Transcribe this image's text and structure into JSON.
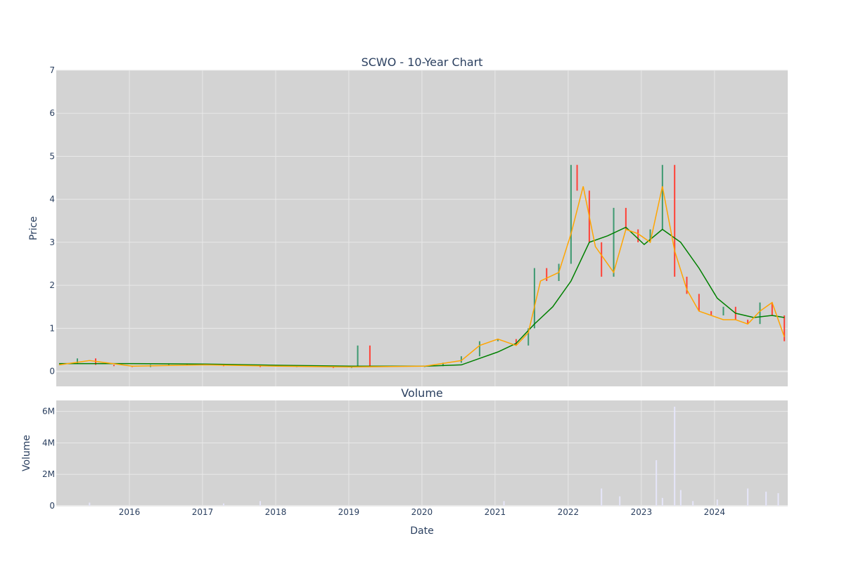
{
  "chart_data": [
    {
      "type": "candlestick",
      "title": "SCWO - 10-Year Chart",
      "ylabel": "Price",
      "xlabel": "",
      "ylim": [
        -0.35,
        7
      ],
      "yticks": [
        0,
        1,
        2,
        3,
        4,
        5,
        6,
        7
      ],
      "xlim": [
        "2015-01-01",
        "2024-12-31"
      ],
      "xticks": [
        "2016",
        "2017",
        "2018",
        "2019",
        "2020",
        "2021",
        "2022",
        "2023",
        "2024"
      ],
      "grid": true,
      "colors": {
        "up": "#3d9970",
        "down": "#ff4136",
        "ma_short": "#ffa500",
        "ma_long": "#008000",
        "plot_bg": "#d3d3d3",
        "grid": "#e8e8e8"
      },
      "series": [
        {
          "name": "",
          "kind": "ohlc-close",
          "x": [
            "2015-01",
            "2015-04",
            "2015-07",
            "2015-10",
            "2016-01",
            "2016-04",
            "2016-07",
            "2016-10",
            "2017-01",
            "2017-04",
            "2017-07",
            "2017-10",
            "2018-01",
            "2018-04",
            "2018-07",
            "2018-10",
            "2019-01",
            "2019-02",
            "2019-04",
            "2019-07",
            "2019-10",
            "2020-01",
            "2020-04",
            "2020-07",
            "2020-10",
            "2021-01",
            "2021-04",
            "2021-06",
            "2021-07",
            "2021-09",
            "2021-11",
            "2022-01",
            "2022-02",
            "2022-04",
            "2022-06",
            "2022-08",
            "2022-10",
            "2022-12",
            "2023-02",
            "2023-04",
            "2023-06",
            "2023-08",
            "2023-10",
            "2023-12",
            "2024-02",
            "2024-04",
            "2024-06",
            "2024-08",
            "2024-10",
            "2024-12"
          ],
          "values": [
            0.18,
            0.3,
            0.15,
            0.12,
            0.1,
            0.15,
            0.18,
            0.14,
            0.15,
            0.12,
            0.12,
            0.1,
            0.1,
            0.12,
            0.1,
            0.08,
            0.1,
            0.6,
            0.1,
            0.1,
            0.1,
            0.12,
            0.2,
            0.35,
            0.7,
            0.75,
            0.6,
            1.0,
            2.4,
            2.1,
            2.5,
            4.8,
            4.2,
            3.0,
            2.2,
            3.8,
            3.3,
            3.0,
            3.3,
            4.8,
            2.2,
            1.8,
            1.4,
            1.3,
            1.5,
            1.2,
            1.1,
            1.6,
            1.3,
            0.7
          ]
        },
        {
          "name": "",
          "kind": "moving-average-short",
          "x": [
            "2015-01",
            "2015-06",
            "2016-01",
            "2017-01",
            "2018-01",
            "2019-01",
            "2020-01",
            "2020-07",
            "2020-10",
            "2021-01",
            "2021-04",
            "2021-06",
            "2021-08",
            "2021-11",
            "2022-01",
            "2022-03",
            "2022-05",
            "2022-08",
            "2022-10",
            "2022-12",
            "2023-02",
            "2023-04",
            "2023-06",
            "2023-08",
            "2023-10",
            "2023-12",
            "2024-02",
            "2024-04",
            "2024-06",
            "2024-08",
            "2024-10",
            "2024-12"
          ],
          "values": [
            0.15,
            0.25,
            0.12,
            0.15,
            0.12,
            0.1,
            0.12,
            0.25,
            0.6,
            0.75,
            0.6,
            0.9,
            2.1,
            2.3,
            3.2,
            4.3,
            2.9,
            2.3,
            3.3,
            3.2,
            3.0,
            4.3,
            2.8,
            1.9,
            1.4,
            1.3,
            1.2,
            1.2,
            1.1,
            1.4,
            1.6,
            0.8
          ]
        },
        {
          "name": "",
          "kind": "moving-average-long",
          "x": [
            "2015-01",
            "2015-06",
            "2016-01",
            "2017-01",
            "2018-01",
            "2019-01",
            "2020-01",
            "2020-07",
            "2020-10",
            "2021-01",
            "2021-04",
            "2021-07",
            "2021-10",
            "2022-01",
            "2022-04",
            "2022-07",
            "2022-10",
            "2023-01",
            "2023-04",
            "2023-07",
            "2023-10",
            "2024-01",
            "2024-04",
            "2024-07",
            "2024-10",
            "2024-12"
          ],
          "values": [
            0.18,
            0.18,
            0.18,
            0.17,
            0.14,
            0.12,
            0.12,
            0.15,
            0.3,
            0.45,
            0.65,
            1.1,
            1.5,
            2.1,
            3.0,
            3.15,
            3.35,
            2.95,
            3.3,
            3.0,
            2.4,
            1.7,
            1.35,
            1.25,
            1.3,
            1.25
          ]
        }
      ]
    },
    {
      "type": "bar",
      "title": "Volume",
      "ylabel": "Volume",
      "xlabel": "Date",
      "ylim": [
        0,
        6700000
      ],
      "yticks": [
        0,
        2000000,
        4000000,
        6000000
      ],
      "ytick_labels": [
        "0",
        "2M",
        "4M",
        "6M"
      ],
      "xlim": [
        "2015-01-01",
        "2024-12-31"
      ],
      "xticks": [
        "2016",
        "2017",
        "2018",
        "2019",
        "2020",
        "2021",
        "2022",
        "2023",
        "2024"
      ],
      "grid": true,
      "colors": {
        "bar": "#e6e6fa",
        "plot_bg": "#d3d3d3",
        "grid": "#e8e8e8"
      },
      "series": [
        {
          "name": "",
          "x": [
            "2015-06",
            "2017-04",
            "2017-10",
            "2021-02",
            "2022-06",
            "2022-09",
            "2023-03",
            "2023-04",
            "2023-06",
            "2023-07",
            "2023-09",
            "2024-01",
            "2024-06",
            "2024-09",
            "2024-11"
          ],
          "values": [
            200000,
            150000,
            300000,
            300000,
            1100000,
            600000,
            2900000,
            500000,
            6300000,
            1000000,
            300000,
            400000,
            1100000,
            900000,
            800000
          ]
        }
      ]
    }
  ]
}
